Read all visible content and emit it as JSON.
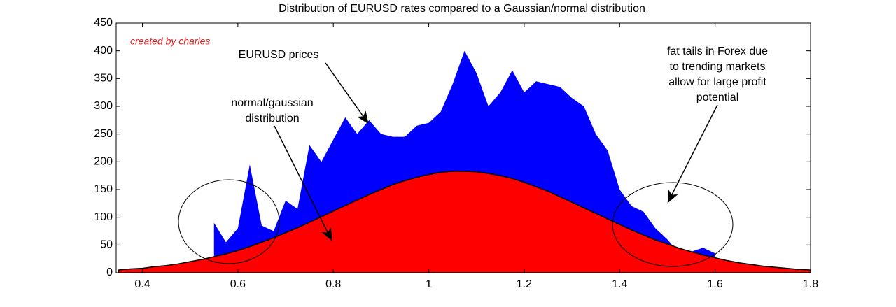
{
  "chart_data": {
    "type": "area",
    "title": "Distribution of EURUSD rates compared to a Gaussian/normal distribution",
    "credit": "created by charles",
    "annotations": [
      [
        "EURUSD prices"
      ],
      [
        "normal/gaussian",
        "distribution"
      ],
      [
        "fat tails in Forex due",
        "to trending markets",
        "allow for large profit",
        "potential"
      ]
    ],
    "x": [
      0.35,
      0.375,
      0.4,
      0.425,
      0.45,
      0.475,
      0.5,
      0.525,
      0.55,
      0.575,
      0.6,
      0.625,
      0.65,
      0.675,
      0.7,
      0.725,
      0.75,
      0.775,
      0.8,
      0.825,
      0.85,
      0.875,
      0.9,
      0.925,
      0.95,
      0.975,
      1.0,
      1.025,
      1.05,
      1.075,
      1.1,
      1.125,
      1.15,
      1.175,
      1.2,
      1.225,
      1.25,
      1.275,
      1.3,
      1.325,
      1.35,
      1.375,
      1.4,
      1.425,
      1.45,
      1.475,
      1.5,
      1.525,
      1.55,
      1.575,
      1.6,
      1.625,
      1.65,
      1.675,
      1.7,
      1.725,
      1.75,
      1.775,
      1.8
    ],
    "series": [
      {
        "color": "#0000ff",
        "values": [
          null,
          null,
          null,
          null,
          null,
          null,
          null,
          null,
          90,
          55,
          80,
          195,
          85,
          75,
          130,
          115,
          230,
          200,
          240,
          280,
          250,
          275,
          250,
          245,
          245,
          265,
          270,
          290,
          340,
          400,
          360,
          300,
          325,
          365,
          325,
          345,
          340,
          335,
          315,
          300,
          250,
          220,
          150,
          120,
          110,
          80,
          60,
          35,
          38,
          45,
          35,
          null,
          null,
          null,
          null,
          null,
          null,
          null,
          null
        ]
      },
      {
        "color": "#ff0000",
        "values": [
          5,
          7,
          8,
          11,
          13,
          16,
          20,
          24,
          29,
          34,
          40,
          47,
          55,
          63,
          72,
          81,
          91,
          101,
          111,
          121,
          131,
          141,
          150,
          159,
          166,
          172,
          177,
          181,
          183,
          183,
          182,
          179,
          175,
          170,
          163,
          155,
          147,
          137,
          127,
          117,
          107,
          97,
          87,
          77,
          68,
          59,
          52,
          44,
          38,
          32,
          27,
          22,
          18,
          15,
          12,
          10,
          8,
          6,
          5
        ]
      }
    ],
    "xlim": [
      0.345,
      1.8
    ],
    "xticks": [
      0.4,
      0.6,
      0.8,
      1,
      1.2,
      1.4,
      1.6,
      1.8
    ],
    "ylim": [
      0,
      450
    ],
    "yticks": [
      0,
      50,
      100,
      150,
      200,
      250,
      300,
      350,
      400,
      450
    ]
  }
}
